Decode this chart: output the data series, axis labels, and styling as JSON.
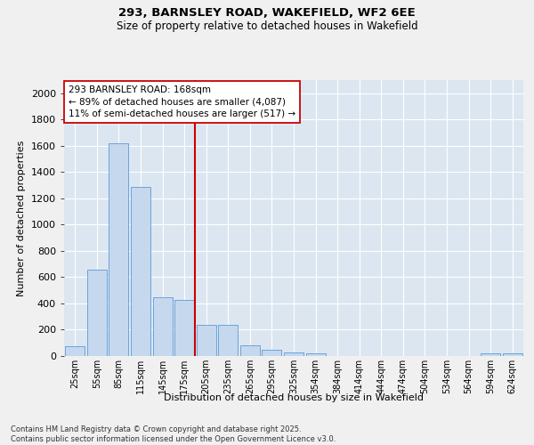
{
  "title_line1": "293, BARNSLEY ROAD, WAKEFIELD, WF2 6EE",
  "title_line2": "Size of property relative to detached houses in Wakefield",
  "xlabel": "Distribution of detached houses by size in Wakefield",
  "ylabel": "Number of detached properties",
  "categories": [
    "25sqm",
    "55sqm",
    "85sqm",
    "115sqm",
    "145sqm",
    "175sqm",
    "205sqm",
    "235sqm",
    "265sqm",
    "295sqm",
    "325sqm",
    "354sqm",
    "384sqm",
    "414sqm",
    "444sqm",
    "474sqm",
    "504sqm",
    "534sqm",
    "564sqm",
    "594sqm",
    "624sqm"
  ],
  "values": [
    75,
    660,
    1620,
    1290,
    450,
    430,
    240,
    240,
    80,
    50,
    30,
    20,
    0,
    0,
    0,
    0,
    0,
    0,
    0,
    20,
    20
  ],
  "bar_color": "#c5d8ee",
  "bar_edge_color": "#5b9bd5",
  "vline_color": "#cc0000",
  "vline_pos": 5.5,
  "annotation_text": "293 BARNSLEY ROAD: 168sqm\n← 89% of detached houses are smaller (4,087)\n11% of semi-detached houses are larger (517) →",
  "annotation_box_color": "#ffffff",
  "annotation_box_edge": "#cc0000",
  "ylim": [
    0,
    2100
  ],
  "yticks": [
    0,
    200,
    400,
    600,
    800,
    1000,
    1200,
    1400,
    1600,
    1800,
    2000
  ],
  "plot_bg_color": "#dce6f1",
  "grid_color": "#ffffff",
  "fig_bg_color": "#f0f0f0",
  "footnote": "Contains HM Land Registry data © Crown copyright and database right 2025.\nContains public sector information licensed under the Open Government Licence v3.0."
}
